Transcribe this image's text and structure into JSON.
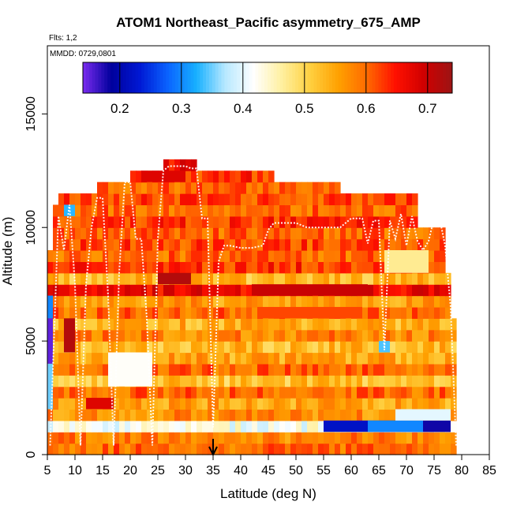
{
  "chart_data": {
    "type": "heatmap",
    "title": "ATOM1 Northeast_Pacific asymmetry_675_AMP",
    "flights_note": "Flts: 1,2",
    "date_note": "MMDD: 0729,0801",
    "xlabel": "Latitude (deg N)",
    "ylabel": "Altitude (m)",
    "xlim": [
      5,
      85
    ],
    "ylim": [
      0,
      18000
    ],
    "x_ticks": [
      5,
      10,
      15,
      20,
      25,
      30,
      35,
      40,
      45,
      50,
      55,
      60,
      65,
      70,
      75,
      80,
      85
    ],
    "y_ticks": [
      0,
      5000,
      10000,
      15000
    ],
    "colorbar": {
      "min": 0.14,
      "max": 0.74,
      "ticks": [
        0.2,
        0.3,
        0.4,
        0.5,
        0.6,
        0.7
      ],
      "colors": [
        "#7b2cf0",
        "#00009c",
        "#0018d4",
        "#0a64ff",
        "#18b0ff",
        "#b6e8ff",
        "#ffffff",
        "#fff0a0",
        "#ffd040",
        "#ffa000",
        "#ff6a00",
        "#ff1000",
        "#d00000",
        "#9c1414"
      ]
    },
    "marker": {
      "latitude": 35,
      "label": "arrow"
    },
    "bands": [
      {
        "alt_min": 0,
        "alt_max": 500,
        "lat_min": 5,
        "lat_max": 79,
        "value": 0.6
      },
      {
        "alt_min": 500,
        "alt_max": 1000,
        "lat_min": 5,
        "lat_max": 79,
        "value": 0.58
      },
      {
        "alt_min": 1000,
        "alt_max": 1500,
        "lat_min": 5,
        "lat_max": 79,
        "value": 0.42
      },
      {
        "alt_min": 1500,
        "alt_max": 2000,
        "lat_min": 5,
        "lat_max": 79,
        "value": 0.57
      },
      {
        "alt_min": 2000,
        "alt_max": 2500,
        "lat_min": 5,
        "lat_max": 79,
        "value": 0.55
      },
      {
        "alt_min": 2500,
        "alt_max": 3000,
        "lat_min": 5,
        "lat_max": 79,
        "value": 0.6
      },
      {
        "alt_min": 3000,
        "alt_max": 3500,
        "lat_min": 5,
        "lat_max": 79,
        "value": 0.52
      },
      {
        "alt_min": 3500,
        "alt_max": 4000,
        "lat_min": 5,
        "lat_max": 79,
        "value": 0.6
      },
      {
        "alt_min": 4000,
        "alt_max": 4500,
        "lat_min": 5,
        "lat_max": 79,
        "value": 0.55
      },
      {
        "alt_min": 4500,
        "alt_max": 5000,
        "lat_min": 5,
        "lat_max": 79,
        "value": 0.53
      },
      {
        "alt_min": 5000,
        "alt_max": 5500,
        "lat_min": 5,
        "lat_max": 79,
        "value": 0.58
      },
      {
        "alt_min": 5500,
        "alt_max": 6000,
        "lat_min": 5,
        "lat_max": 79,
        "value": 0.54
      },
      {
        "alt_min": 6000,
        "alt_max": 6500,
        "lat_min": 5,
        "lat_max": 78,
        "value": 0.6
      },
      {
        "alt_min": 6500,
        "alt_max": 7000,
        "lat_min": 5,
        "lat_max": 78,
        "value": 0.56
      },
      {
        "alt_min": 7000,
        "alt_max": 7500,
        "lat_min": 5,
        "lat_max": 78,
        "value": 0.67
      },
      {
        "alt_min": 7500,
        "alt_max": 8000,
        "lat_min": 5,
        "lat_max": 78,
        "value": 0.53
      },
      {
        "alt_min": 8000,
        "alt_max": 8500,
        "lat_min": 5,
        "lat_max": 77,
        "value": 0.63
      },
      {
        "alt_min": 8500,
        "alt_max": 9000,
        "lat_min": 5,
        "lat_max": 77,
        "value": 0.6
      },
      {
        "alt_min": 9000,
        "alt_max": 9500,
        "lat_min": 6,
        "lat_max": 77,
        "value": 0.62
      },
      {
        "alt_min": 9500,
        "alt_max": 10000,
        "lat_min": 6,
        "lat_max": 77,
        "value": 0.6
      },
      {
        "alt_min": 10000,
        "alt_max": 10500,
        "lat_min": 6,
        "lat_max": 72,
        "value": 0.63
      },
      {
        "alt_min": 10500,
        "alt_max": 11000,
        "lat_min": 6,
        "lat_max": 72,
        "value": 0.6
      },
      {
        "alt_min": 11000,
        "alt_max": 11500,
        "lat_min": 7,
        "lat_max": 72,
        "value": 0.62
      },
      {
        "alt_min": 11500,
        "alt_max": 12000,
        "lat_min": 14,
        "lat_max": 58,
        "value": 0.6
      },
      {
        "alt_min": 12000,
        "alt_max": 12500,
        "lat_min": 20,
        "lat_max": 46,
        "value": 0.63
      },
      {
        "alt_min": 12500,
        "alt_max": 13000,
        "lat_min": 26,
        "lat_max": 32,
        "value": 0.66
      }
    ],
    "patches": [
      {
        "alt_min": 1000,
        "alt_max": 1500,
        "lat_min": 55,
        "lat_max": 78,
        "value": 0.22
      },
      {
        "alt_min": 1000,
        "alt_max": 1500,
        "lat_min": 63,
        "lat_max": 73,
        "value": 0.3
      },
      {
        "alt_min": 1000,
        "alt_max": 1500,
        "lat_min": 73,
        "lat_max": 78,
        "value": 0.18
      },
      {
        "alt_min": 1500,
        "alt_max": 2000,
        "lat_min": 68,
        "lat_max": 78,
        "value": 0.4
      },
      {
        "alt_min": 7000,
        "alt_max": 7500,
        "lat_min": 42,
        "lat_max": 63,
        "value": 0.7
      },
      {
        "alt_min": 4000,
        "alt_max": 6000,
        "lat_min": 5,
        "lat_max": 6,
        "value": 0.15
      },
      {
        "alt_min": 6000,
        "alt_max": 7000,
        "lat_min": 5,
        "lat_max": 6,
        "value": 0.3
      },
      {
        "alt_min": 2000,
        "alt_max": 4000,
        "lat_min": 5,
        "lat_max": 6,
        "value": 0.35
      },
      {
        "alt_min": 4500,
        "alt_max": 6000,
        "lat_min": 8,
        "lat_max": 10,
        "value": 0.72
      },
      {
        "alt_min": 2000,
        "alt_max": 2500,
        "lat_min": 12,
        "lat_max": 17,
        "value": 0.68
      },
      {
        "alt_min": 3000,
        "alt_max": 4500,
        "lat_min": 16,
        "lat_max": 24,
        "value": 0.42
      },
      {
        "alt_min": 7500,
        "alt_max": 8000,
        "lat_min": 25,
        "lat_max": 31,
        "value": 0.72
      },
      {
        "alt_min": 12000,
        "alt_max": 12500,
        "lat_min": 22,
        "lat_max": 30,
        "value": 0.68
      },
      {
        "alt_min": 10500,
        "alt_max": 11000,
        "lat_min": 8,
        "lat_max": 10,
        "value": 0.33
      },
      {
        "alt_min": 4500,
        "alt_max": 5000,
        "lat_min": 65,
        "lat_max": 67,
        "value": 0.34
      },
      {
        "alt_min": 8000,
        "alt_max": 9000,
        "lat_min": 66,
        "lat_max": 74,
        "value": 0.47
      },
      {
        "alt_min": 6000,
        "alt_max": 6500,
        "lat_min": 43,
        "lat_max": 62,
        "value": 0.62
      }
    ],
    "profile_line": {
      "lat": [
        5.5,
        7,
        8,
        9,
        10,
        11,
        12,
        13,
        14,
        15,
        16,
        17,
        18,
        19,
        19.5,
        20,
        21,
        22,
        23,
        24,
        25,
        26,
        27,
        28,
        29,
        30,
        31,
        32,
        33,
        34,
        35,
        36,
        37,
        38,
        40,
        42,
        44,
        45,
        46,
        48,
        50,
        52,
        54,
        56,
        58,
        60,
        62,
        63,
        64,
        65,
        66,
        67,
        68,
        69,
        70,
        71,
        72,
        73,
        74,
        75,
        76,
        77,
        78,
        79
      ],
      "alt": [
        400,
        10500,
        9000,
        11000,
        7500,
        400,
        7500,
        10000,
        11300,
        11300,
        7000,
        400,
        8000,
        12000,
        12000,
        12000,
        9500,
        9500,
        6000,
        400,
        9500,
        12500,
        12700,
        12700,
        12700,
        12700,
        12600,
        12600,
        10400,
        10400,
        1200,
        8500,
        9200,
        9200,
        9100,
        9100,
        9200,
        9900,
        10200,
        10200,
        10200,
        10000,
        10000,
        10000,
        10000,
        10400,
        10400,
        9300,
        10300,
        10300,
        4600,
        10300,
        9500,
        10600,
        9200,
        10500,
        9400,
        9000,
        9400,
        10400,
        10400,
        9200,
        6500,
        400
      ]
    }
  }
}
